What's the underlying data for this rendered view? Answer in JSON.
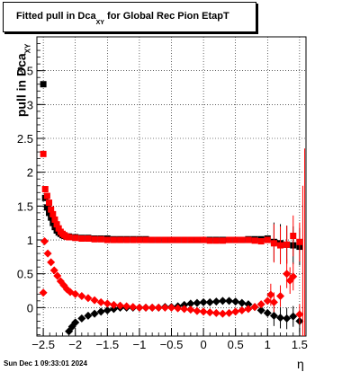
{
  "chart_data": {
    "type": "scatter",
    "title_main": "Fitted pull in Dca",
    "title_sub": "XY",
    "title_rest": " for Global Rec Pion EtapT",
    "ylabel_main": "pull in Dca",
    "ylabel_sub": "XY",
    "xlabel": "η",
    "xlim": [
      -2.6,
      1.6
    ],
    "ylim": [
      -0.42,
      4.0
    ],
    "x_ticks": [
      "−2.5",
      "−2",
      "−1.5",
      "−1",
      "−0.5",
      "0",
      "0.5",
      "1",
      "1.5"
    ],
    "y_ticks": [
      "0",
      "0.5",
      "1",
      "1.5",
      "2",
      "2.5",
      "3",
      "3.5"
    ],
    "grid": true,
    "series": [
      {
        "color": "#000000",
        "marker": "square",
        "points": [
          [
            -2.5,
            3.3
          ],
          [
            -2.47,
            1.62
          ],
          [
            -2.44,
            1.48
          ],
          [
            -2.41,
            1.4
          ],
          [
            -2.38,
            1.33
          ],
          [
            -2.35,
            1.25
          ],
          [
            -2.32,
            1.19
          ],
          [
            -2.29,
            1.14
          ],
          [
            -2.26,
            1.11
          ],
          [
            -2.23,
            1.09
          ],
          [
            -2.2,
            1.07
          ],
          [
            -2.17,
            1.06
          ],
          [
            -2.14,
            1.05
          ],
          [
            -2.1,
            1.05
          ],
          [
            -2.0,
            1.04
          ],
          [
            -1.9,
            1.03
          ],
          [
            -1.8,
            1.03
          ],
          [
            -1.7,
            1.02
          ],
          [
            -1.6,
            1.02
          ],
          [
            -1.5,
            1.02
          ],
          [
            -1.4,
            1.01
          ],
          [
            -1.3,
            1.01
          ],
          [
            -1.2,
            1.01
          ],
          [
            -1.1,
            1.01
          ],
          [
            -1.0,
            1.01
          ],
          [
            -0.9,
            1.01
          ],
          [
            -0.8,
            1.0
          ],
          [
            -0.7,
            1.0
          ],
          [
            -0.6,
            1.0
          ],
          [
            -0.5,
            1.0
          ],
          [
            -0.4,
            1.0
          ],
          [
            -0.3,
            1.0
          ],
          [
            -0.2,
            1.0
          ],
          [
            -0.1,
            1.0
          ],
          [
            0.0,
            1.0
          ],
          [
            0.1,
            1.0
          ],
          [
            0.2,
            1.0
          ],
          [
            0.3,
            1.0
          ],
          [
            0.4,
            1.0
          ],
          [
            0.5,
            1.0
          ],
          [
            0.6,
            1.0
          ],
          [
            0.7,
            1.01
          ],
          [
            0.8,
            1.01
          ],
          [
            0.9,
            1.01
          ],
          [
            1.0,
            1.02
          ],
          [
            1.1,
            0.97
          ],
          [
            1.2,
            0.95
          ],
          [
            1.3,
            0.93
          ],
          [
            1.4,
            0.92
          ],
          [
            1.5,
            0.9
          ]
        ]
      },
      {
        "color": "#000000",
        "marker": "diamond",
        "points": [
          [
            -2.1,
            -0.35
          ],
          [
            -2.05,
            -0.28
          ],
          [
            -2.0,
            -0.22
          ],
          [
            -1.9,
            -0.16
          ],
          [
            -1.8,
            -0.12
          ],
          [
            -1.7,
            -0.09
          ],
          [
            -1.6,
            -0.06
          ],
          [
            -1.5,
            -0.04
          ],
          [
            -1.4,
            -0.02
          ],
          [
            -1.3,
            0.0
          ],
          [
            -1.2,
            0.0
          ],
          [
            -1.1,
            0.0
          ],
          [
            -1.0,
            0.0
          ],
          [
            -0.9,
            0.0
          ],
          [
            -0.8,
            0.0
          ],
          [
            -0.7,
            0.0
          ],
          [
            -0.6,
            0.01
          ],
          [
            -0.5,
            0.01
          ],
          [
            -0.4,
            0.02
          ],
          [
            -0.3,
            0.04
          ],
          [
            -0.2,
            0.06
          ],
          [
            -0.1,
            0.07
          ],
          [
            0.0,
            0.08
          ],
          [
            0.1,
            0.08
          ],
          [
            0.2,
            0.09
          ],
          [
            0.3,
            0.1
          ],
          [
            0.4,
            0.1
          ],
          [
            0.5,
            0.09
          ],
          [
            0.6,
            0.07
          ],
          [
            0.7,
            0.05
          ],
          [
            0.8,
            0.01
          ],
          [
            0.9,
            -0.04
          ],
          [
            1.0,
            -0.08
          ],
          [
            1.1,
            -0.12
          ],
          [
            1.2,
            -0.15
          ],
          [
            1.3,
            -0.16
          ],
          [
            1.4,
            -0.13
          ],
          [
            1.5,
            -0.2
          ]
        ]
      },
      {
        "color": "#ff0000",
        "marker": "square",
        "points": [
          [
            -2.5,
            2.27
          ],
          [
            -2.47,
            1.75
          ],
          [
            -2.44,
            1.65
          ],
          [
            -2.41,
            1.55
          ],
          [
            -2.38,
            1.45
          ],
          [
            -2.35,
            1.38
          ],
          [
            -2.32,
            1.3
          ],
          [
            -2.29,
            1.23
          ],
          [
            -2.26,
            1.17
          ],
          [
            -2.23,
            1.12
          ],
          [
            -2.2,
            1.09
          ],
          [
            -2.17,
            1.07
          ],
          [
            -2.14,
            1.05
          ],
          [
            -2.1,
            1.04
          ],
          [
            -2.0,
            1.03
          ],
          [
            -1.9,
            1.02
          ],
          [
            -1.8,
            1.02
          ],
          [
            -1.7,
            1.01
          ],
          [
            -1.6,
            1.01
          ],
          [
            -1.5,
            1.0
          ],
          [
            -1.4,
            1.0
          ],
          [
            -1.3,
            1.0
          ],
          [
            -1.2,
            1.0
          ],
          [
            -1.1,
            1.0
          ],
          [
            -1.0,
            1.0
          ],
          [
            -0.9,
            1.0
          ],
          [
            -0.8,
            1.0
          ],
          [
            -0.7,
            1.0
          ],
          [
            -0.6,
            1.0
          ],
          [
            -0.5,
            1.0
          ],
          [
            -0.4,
            1.0
          ],
          [
            -0.3,
            1.0
          ],
          [
            -0.2,
            1.0
          ],
          [
            -0.1,
            1.0
          ],
          [
            0.0,
            1.0
          ],
          [
            0.1,
            0.99
          ],
          [
            0.2,
            0.99
          ],
          [
            0.3,
            0.99
          ],
          [
            0.4,
            1.0
          ],
          [
            0.5,
            1.0
          ],
          [
            0.6,
            1.0
          ],
          [
            0.7,
            1.0
          ],
          [
            0.8,
            0.99
          ],
          [
            0.9,
            0.98
          ],
          [
            1.0,
            1.0
          ],
          [
            1.1,
            0.95
          ],
          [
            1.2,
            0.92
          ],
          [
            1.3,
            0.93
          ],
          [
            1.4,
            1.06
          ],
          [
            1.5,
            0.97
          ]
        ]
      },
      {
        "color": "#ff0000",
        "marker": "diamond",
        "points": [
          [
            -2.5,
            0.22
          ],
          [
            -2.48,
            0.98
          ],
          [
            -2.43,
            0.8
          ],
          [
            -2.38,
            0.67
          ],
          [
            -2.33,
            0.55
          ],
          [
            -2.28,
            0.47
          ],
          [
            -2.23,
            0.39
          ],
          [
            -2.18,
            0.33
          ],
          [
            -2.13,
            0.27
          ],
          [
            -2.08,
            0.23
          ],
          [
            -2.0,
            0.2
          ],
          [
            -1.9,
            0.17
          ],
          [
            -1.8,
            0.14
          ],
          [
            -1.7,
            0.11
          ],
          [
            -1.6,
            0.08
          ],
          [
            -1.5,
            0.06
          ],
          [
            -1.4,
            0.04
          ],
          [
            -1.3,
            0.03
          ],
          [
            -1.2,
            0.02
          ],
          [
            -1.1,
            0.01
          ],
          [
            -1.0,
            0.0
          ],
          [
            -0.9,
            0.0
          ],
          [
            -0.8,
            0.0
          ],
          [
            -0.7,
            0.0
          ],
          [
            -0.6,
            0.0
          ],
          [
            -0.5,
            0.0
          ],
          [
            -0.4,
            -0.01
          ],
          [
            -0.3,
            -0.02
          ],
          [
            -0.2,
            -0.03
          ],
          [
            -0.1,
            -0.05
          ],
          [
            0.0,
            -0.06
          ],
          [
            0.1,
            -0.07
          ],
          [
            0.2,
            -0.08
          ],
          [
            0.3,
            -0.09
          ],
          [
            0.4,
            -0.08
          ],
          [
            0.5,
            -0.06
          ],
          [
            0.6,
            -0.04
          ],
          [
            0.7,
            -0.02
          ],
          [
            0.8,
            0.01
          ],
          [
            0.9,
            0.05
          ],
          [
            1.0,
            0.1
          ],
          [
            1.05,
            0.19
          ],
          [
            1.1,
            0.08
          ],
          [
            1.2,
            0.17
          ],
          [
            1.3,
            0.5
          ],
          [
            1.35,
            0.4
          ],
          [
            1.4,
            0.46
          ],
          [
            1.5,
            -0.1
          ]
        ]
      }
    ],
    "timestamp": "Sun Dec  1 09:33:01 2024"
  }
}
